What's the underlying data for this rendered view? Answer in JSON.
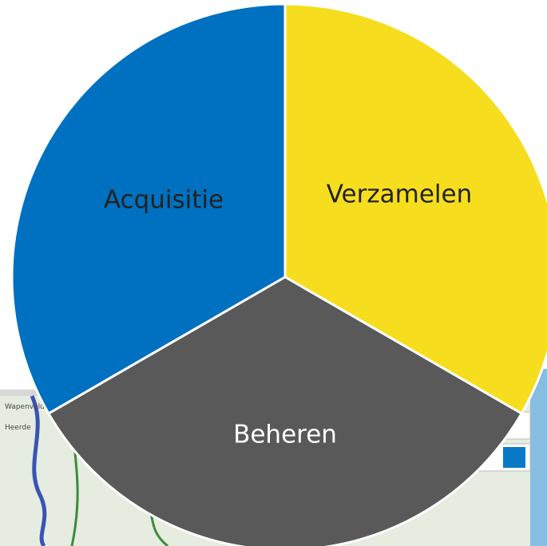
{
  "diagram": {
    "segments": [
      {
        "label": "Verzamelen",
        "color": "#f6de1f",
        "text_color": "#222222"
      },
      {
        "label": "Beheren",
        "color": "#595959",
        "text_color": "#ffffff"
      },
      {
        "label": "Acquisitie",
        "color": "#0070c0",
        "text_color": "#222222"
      }
    ]
  },
  "map": {
    "labels": [
      "Wapenveld",
      "Heerde"
    ]
  }
}
